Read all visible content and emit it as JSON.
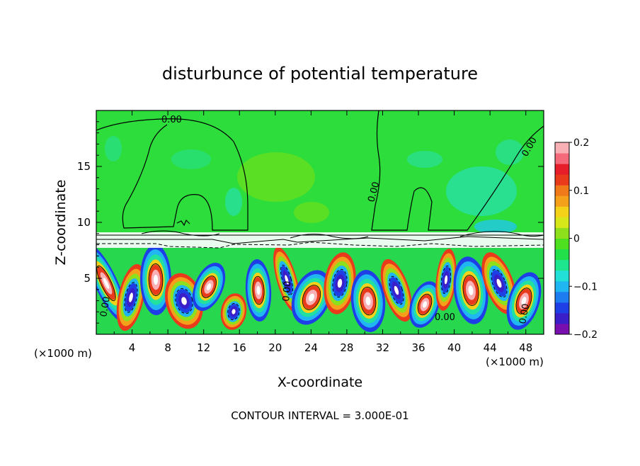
{
  "chart_data": {
    "type": "heatmap",
    "title": "disturbunce of potential temperature",
    "xlabel": "X-coordinate",
    "ylabel": "Z-coordinate",
    "x_unit_left": "(×1000 m)",
    "x_unit_right": "(×1000 m)",
    "xlim": [
      0,
      50
    ],
    "ylim": [
      0,
      20
    ],
    "x_ticks": [
      4,
      8,
      12,
      16,
      20,
      24,
      28,
      32,
      36,
      40,
      44,
      48
    ],
    "y_ticks": [
      5,
      10,
      15
    ],
    "colorbar": {
      "range": [
        -0.2,
        0.2
      ],
      "tick_values": [
        0.2,
        0.1,
        0,
        -0.1,
        -0.2
      ],
      "tick_labels": [
        "0.2",
        "0.1",
        "0",
        "−0.1",
        "−0.2"
      ],
      "colors": [
        "#7a0fb0",
        "#3a1ec8",
        "#1f3fe6",
        "#1d7cf0",
        "#1fb6f2",
        "#22e0d8",
        "#1ee68e",
        "#22e04a",
        "#4ee020",
        "#8ee01c",
        "#d6e81a",
        "#f5d21a",
        "#f5a01a",
        "#f07a1a",
        "#ea3a1c",
        "#e61e2a",
        "#f46a7a",
        "#f8b0b4"
      ]
    },
    "contour_labels": [
      "0.00",
      "0.00",
      "0.00",
      "0.00",
      "0.00",
      "0.00",
      "0.00"
    ],
    "footer": "CONTOUR INTERVAL = 3.000E-01"
  },
  "colors": {
    "upper_background": "#2cdd3c",
    "lower_background": "#27d84f",
    "contour": "#000000"
  }
}
